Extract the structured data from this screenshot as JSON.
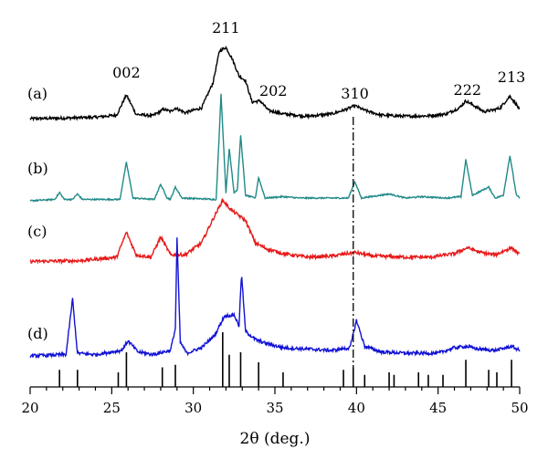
{
  "chart_data": {
    "type": "line",
    "title": "",
    "xlabel": "2θ (deg.)",
    "ylabel": "",
    "xlim": [
      20,
      50
    ],
    "xticks": [
      "20",
      "25",
      "30",
      "35",
      "40",
      "45",
      "50"
    ],
    "yaxis_shown": false,
    "grid": false,
    "legend": "none",
    "series": [
      {
        "name": "(a)",
        "color": "#000000",
        "baseline": 0.75,
        "noise": 0.06,
        "points": [
          [
            20,
            0
          ],
          [
            22,
            0.02
          ],
          [
            24,
            0.06
          ],
          [
            25.3,
            0.15
          ],
          [
            25.9,
            1.0
          ],
          [
            26.5,
            0.18
          ],
          [
            27.5,
            0.12
          ],
          [
            28.2,
            0.4
          ],
          [
            28.6,
            0.3
          ],
          [
            28.9,
            0.45
          ],
          [
            29.5,
            0.25
          ],
          [
            30.5,
            0.45
          ],
          [
            31.2,
            1.5
          ],
          [
            31.6,
            2.85
          ],
          [
            32.0,
            3.0
          ],
          [
            32.4,
            2.5
          ],
          [
            32.8,
            1.8
          ],
          [
            33.2,
            1.6
          ],
          [
            33.6,
            0.7
          ],
          [
            34.1,
            0.75
          ],
          [
            34.6,
            0.35
          ],
          [
            35.5,
            0.2
          ],
          [
            37,
            0.1
          ],
          [
            38.5,
            0.2
          ],
          [
            39.4,
            0.4
          ],
          [
            39.9,
            0.55
          ],
          [
            40.5,
            0.35
          ],
          [
            41.5,
            0.15
          ],
          [
            43,
            0.1
          ],
          [
            44.5,
            0.12
          ],
          [
            45.5,
            0.2
          ],
          [
            46.3,
            0.45
          ],
          [
            46.7,
            0.75
          ],
          [
            47.2,
            0.55
          ],
          [
            47.8,
            0.3
          ],
          [
            48.3,
            0.35
          ],
          [
            48.8,
            0.45
          ],
          [
            49.4,
            0.95
          ],
          [
            49.8,
            0.6
          ],
          [
            50,
            0.35
          ]
        ]
      },
      {
        "name": "(b)",
        "color": "#208a88",
        "baseline": 0.75,
        "noise": 0.025,
        "points": [
          [
            20,
            0
          ],
          [
            21.5,
            0.05
          ],
          [
            21.8,
            0.3
          ],
          [
            22.1,
            0.05
          ],
          [
            22.6,
            0.05
          ],
          [
            22.9,
            0.25
          ],
          [
            23.2,
            0.05
          ],
          [
            25.5,
            0.05
          ],
          [
            25.9,
            1.4
          ],
          [
            26.3,
            0.1
          ],
          [
            27.6,
            0.05
          ],
          [
            28.0,
            0.6
          ],
          [
            28.4,
            0.1
          ],
          [
            28.6,
            0.05
          ],
          [
            28.9,
            0.5
          ],
          [
            29.3,
            0.1
          ],
          [
            31.4,
            0.05
          ],
          [
            31.7,
            3.9
          ],
          [
            32.0,
            0.3
          ],
          [
            32.2,
            1.9
          ],
          [
            32.5,
            0.3
          ],
          [
            32.7,
            0.4
          ],
          [
            32.9,
            2.4
          ],
          [
            33.2,
            0.2
          ],
          [
            33.8,
            0.1
          ],
          [
            34.0,
            0.85
          ],
          [
            34.4,
            0.1
          ],
          [
            35.5,
            0.15
          ],
          [
            36.5,
            0.1
          ],
          [
            39.5,
            0.1
          ],
          [
            39.9,
            0.7
          ],
          [
            40.3,
            0.1
          ],
          [
            42.0,
            0.25
          ],
          [
            43.0,
            0.1
          ],
          [
            44.0,
            0.15
          ],
          [
            45.5,
            0.1
          ],
          [
            46.4,
            0.15
          ],
          [
            46.7,
            1.5
          ],
          [
            47.1,
            0.2
          ],
          [
            48.1,
            0.5
          ],
          [
            48.5,
            0.1
          ],
          [
            49.0,
            0.2
          ],
          [
            49.4,
            1.65
          ],
          [
            49.8,
            0.2
          ],
          [
            50,
            0.1
          ]
        ]
      },
      {
        "name": "(c)",
        "color": "#e81a1a",
        "baseline": 0.75,
        "noise": 0.07,
        "points": [
          [
            20,
            0.02
          ],
          [
            23,
            0.05
          ],
          [
            25.3,
            0.2
          ],
          [
            25.9,
            1.25
          ],
          [
            26.5,
            0.3
          ],
          [
            27.4,
            0.2
          ],
          [
            28.0,
            1.05
          ],
          [
            28.6,
            0.3
          ],
          [
            29.5,
            0.3
          ],
          [
            30.5,
            0.8
          ],
          [
            31.2,
            1.8
          ],
          [
            31.8,
            2.6
          ],
          [
            32.3,
            2.2
          ],
          [
            32.7,
            2.0
          ],
          [
            33.2,
            1.75
          ],
          [
            33.8,
            0.8
          ],
          [
            34.5,
            0.55
          ],
          [
            35.5,
            0.35
          ],
          [
            37,
            0.2
          ],
          [
            38.5,
            0.25
          ],
          [
            39.9,
            0.4
          ],
          [
            41,
            0.25
          ],
          [
            43,
            0.2
          ],
          [
            44.5,
            0.2
          ],
          [
            46,
            0.35
          ],
          [
            46.8,
            0.6
          ],
          [
            47.6,
            0.4
          ],
          [
            48.5,
            0.3
          ],
          [
            49.5,
            0.6
          ],
          [
            50,
            0.3
          ]
        ]
      },
      {
        "name": "(d)",
        "color": "#1212d6",
        "baseline": 0.75,
        "noise": 0.06,
        "points": [
          [
            20,
            0
          ],
          [
            22.2,
            0.05
          ],
          [
            22.6,
            2.1
          ],
          [
            22.9,
            0.1
          ],
          [
            24,
            0.05
          ],
          [
            25.6,
            0.2
          ],
          [
            26.0,
            0.55
          ],
          [
            26.6,
            0.15
          ],
          [
            27.5,
            0.05
          ],
          [
            28.6,
            0.2
          ],
          [
            28.9,
            1.0
          ],
          [
            29.0,
            4.3
          ],
          [
            29.2,
            0.5
          ],
          [
            29.6,
            0.1
          ],
          [
            30.5,
            0.3
          ],
          [
            31.3,
            0.75
          ],
          [
            31.9,
            1.45
          ],
          [
            32.5,
            1.5
          ],
          [
            32.8,
            1.1
          ],
          [
            32.95,
            3.0
          ],
          [
            33.2,
            0.9
          ],
          [
            33.8,
            0.6
          ],
          [
            34.5,
            0.45
          ],
          [
            35.5,
            0.3
          ],
          [
            37,
            0.25
          ],
          [
            38.5,
            0.2
          ],
          [
            39.6,
            0.3
          ],
          [
            40.0,
            1.3
          ],
          [
            40.5,
            0.35
          ],
          [
            41.5,
            0.15
          ],
          [
            43,
            0.1
          ],
          [
            45,
            0.1
          ],
          [
            46,
            0.3
          ],
          [
            46.7,
            0.35
          ],
          [
            47.5,
            0.25
          ],
          [
            48.5,
            0.2
          ],
          [
            49.5,
            0.35
          ],
          [
            50,
            0.2
          ]
        ]
      }
    ],
    "reference_sticks": [
      [
        21.8,
        0.25
      ],
      [
        22.9,
        0.25
      ],
      [
        25.4,
        0.2
      ],
      [
        25.9,
        0.6
      ],
      [
        28.1,
        0.3
      ],
      [
        28.9,
        0.35
      ],
      [
        31.8,
        1.0
      ],
      [
        32.2,
        0.55
      ],
      [
        32.9,
        0.6
      ],
      [
        34.0,
        0.4
      ],
      [
        35.5,
        0.2
      ],
      [
        39.2,
        0.25
      ],
      [
        39.8,
        0.3
      ],
      [
        40.5,
        0.15
      ],
      [
        42.0,
        0.2
      ],
      [
        42.3,
        0.15
      ],
      [
        43.8,
        0.2
      ],
      [
        44.4,
        0.15
      ],
      [
        45.3,
        0.15
      ],
      [
        46.7,
        0.45
      ],
      [
        48.1,
        0.25
      ],
      [
        48.6,
        0.2
      ],
      [
        49.5,
        0.45
      ]
    ],
    "annotations": {
      "peak_labels": [
        {
          "text": "002",
          "x": 25.9
        },
        {
          "text": "211",
          "x": 32.0
        },
        {
          "text": "202",
          "x": 34.9
        },
        {
          "text": "310",
          "x": 39.9
        },
        {
          "text": "222",
          "x": 46.8
        },
        {
          "text": "213",
          "x": 49.5
        }
      ],
      "dash_dot_line_x": 39.8
    }
  }
}
